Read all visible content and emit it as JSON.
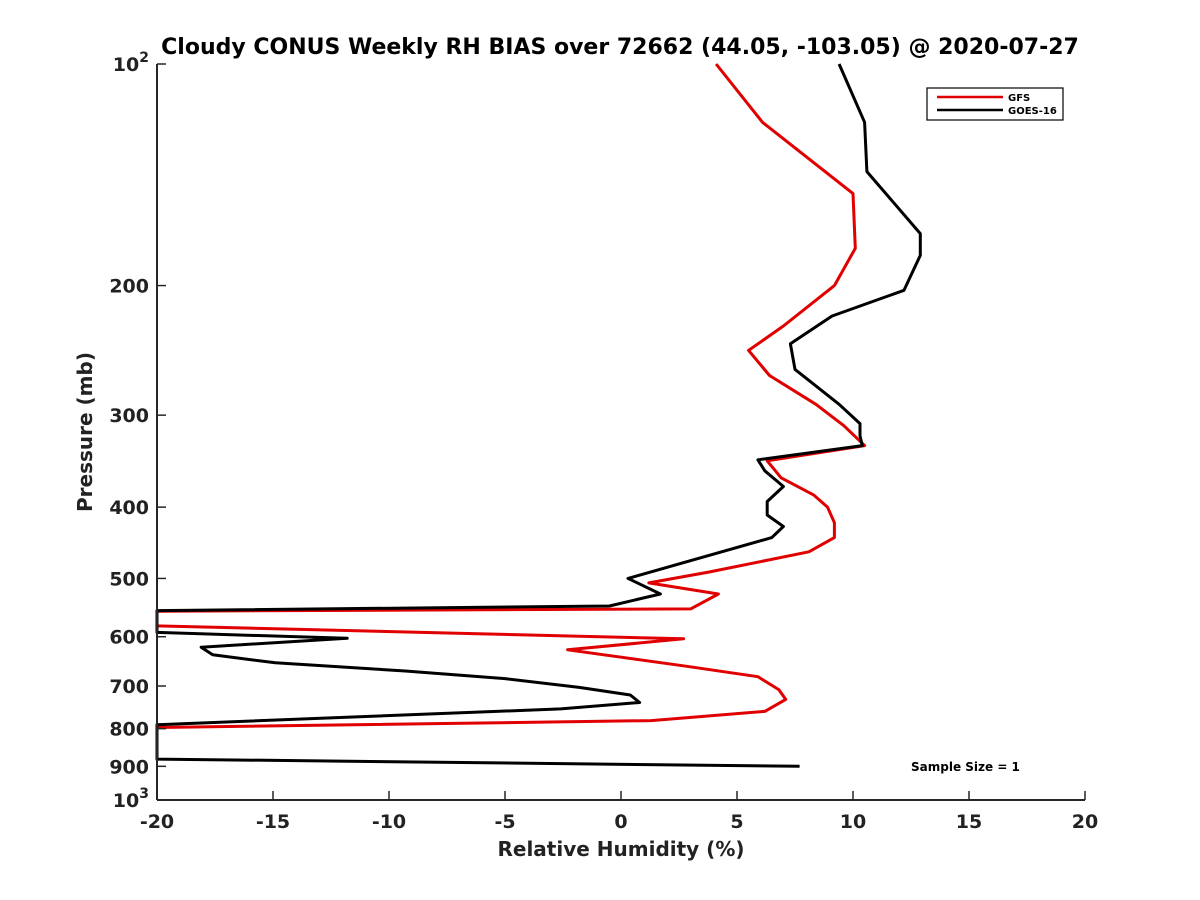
{
  "chart_data": {
    "type": "line",
    "title": "Cloudy CONUS Weekly RH BIAS over 72662 (44.05, -103.05) @ 2020-07-27",
    "xlabel": "Relative Humidity (%)",
    "ylabel": "Pressure (mb)",
    "xlim": [
      -20,
      20
    ],
    "ylim": [
      1000,
      100
    ],
    "yscale": "log",
    "y_reversed": true,
    "grid": false,
    "legend_position": "top-right",
    "annotation": "Sample Size = 1",
    "x_ticks": [
      {
        "value": -20,
        "label": "-20"
      },
      {
        "value": -15,
        "label": "-15"
      },
      {
        "value": -10,
        "label": "-10"
      },
      {
        "value": -5,
        "label": "-5"
      },
      {
        "value": 0,
        "label": "0"
      },
      {
        "value": 5,
        "label": "5"
      },
      {
        "value": 10,
        "label": "10"
      },
      {
        "value": 15,
        "label": "15"
      },
      {
        "value": 20,
        "label": "20"
      }
    ],
    "y_ticks": [
      {
        "value": 100,
        "base": "10",
        "exp": "2"
      },
      {
        "value": 200,
        "base": "200"
      },
      {
        "value": 300,
        "base": "300"
      },
      {
        "value": 400,
        "base": "400"
      },
      {
        "value": 500,
        "base": "500"
      },
      {
        "value": 600,
        "base": "600"
      },
      {
        "value": 700,
        "base": "700"
      },
      {
        "value": 800,
        "base": "800"
      },
      {
        "value": 900,
        "base": "900"
      },
      {
        "value": 1000,
        "base": "10",
        "exp": "3"
      }
    ],
    "series": [
      {
        "name": "GFS",
        "color": "#e00000",
        "x": [
          4.1,
          6.1,
          10.0,
          10.1,
          9.2,
          7.0,
          5.5,
          6.4,
          8.4,
          9.6,
          10.5,
          6.3,
          6.9,
          8.3,
          8.9,
          9.2,
          9.2,
          8.1,
          3.8,
          1.2,
          4.2,
          3.0,
          -20,
          -20,
          2.7,
          -2.3,
          2.8,
          5.9,
          6.8,
          7.1,
          6.2,
          1.3,
          -20
        ],
        "y": [
          100,
          120,
          150,
          178,
          200,
          227,
          245,
          265,
          290,
          310,
          330,
          346,
          365,
          385,
          400,
          420,
          440,
          460,
          490,
          507,
          525,
          550,
          554,
          580,
          604,
          625,
          658,
          680,
          708,
          730,
          758,
          780,
          797
        ]
      },
      {
        "name": "GOES-16",
        "color": "#000000",
        "x": [
          9.4,
          10.5,
          10.6,
          12.9,
          12.9,
          12.2,
          9.1,
          7.3,
          7.5,
          9.4,
          10.3,
          10.3,
          10.4,
          5.9,
          6.2,
          7.0,
          6.3,
          6.3,
          7.0,
          6.5,
          0.3,
          1.7,
          -0.5,
          -20,
          -20,
          -11.8,
          -18.1,
          -17.6,
          -14.9,
          -9.3,
          -5.0,
          -1.8,
          0.4,
          0.8,
          -2.6,
          -11.0,
          -20,
          -20,
          7.7
        ],
        "y": [
          100,
          120,
          140,
          170,
          182,
          203,
          220,
          240,
          260,
          290,
          308,
          320,
          330,
          345,
          357,
          375,
          393,
          410,
          425,
          440,
          500,
          525,
          545,
          553,
          592,
          603,
          620,
          635,
          651,
          668,
          684,
          703,
          720,
          737,
          752,
          770,
          790,
          880,
          900
        ]
      }
    ]
  }
}
